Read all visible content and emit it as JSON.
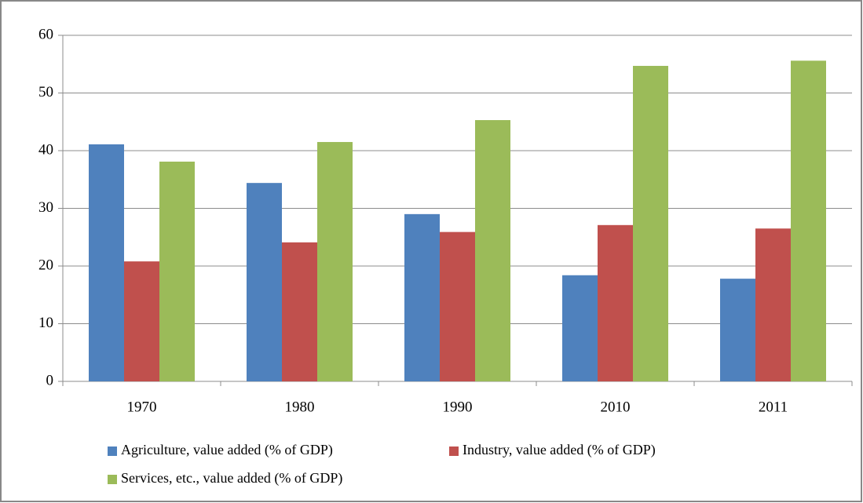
{
  "chart_data": {
    "type": "bar",
    "categories": [
      "1970",
      "1980",
      "1990",
      "2010",
      "2011"
    ],
    "series": [
      {
        "name": "Agriculture, value added (% of GDP)",
        "color": "#4f81bd",
        "values": [
          41.1,
          34.4,
          29.0,
          18.4,
          17.8
        ]
      },
      {
        "name": "Industry, value added (% of GDP)",
        "color": "#c0504d",
        "values": [
          20.8,
          24.1,
          25.9,
          27.1,
          26.5
        ]
      },
      {
        "name": "Services, etc., value added (% of GDP)",
        "color": "#9bbb59",
        "values": [
          38.1,
          41.5,
          45.3,
          54.7,
          55.6
        ]
      }
    ],
    "ylim": [
      0,
      60
    ],
    "yticks": [
      0,
      10,
      20,
      30,
      40,
      50,
      60
    ],
    "grid": true,
    "legend": "bottom"
  }
}
